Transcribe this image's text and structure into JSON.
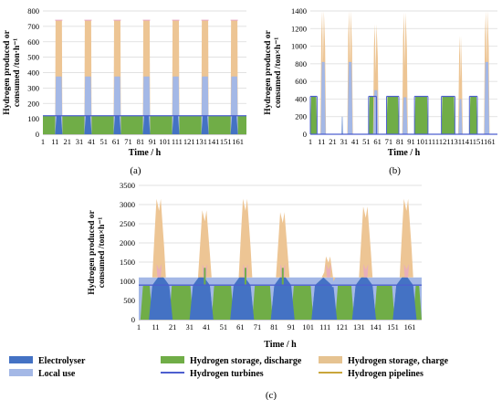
{
  "chart_data": [
    {
      "type": "area",
      "panel_label": "(a)",
      "xlabel": "Time / h",
      "ylabel_line1": "Hydrogen produced or",
      "ylabel_line2": "consumed /ton·h⁻¹",
      "ylim": [
        0,
        800
      ],
      "xlim": [
        1,
        168
      ],
      "yticks": [
        0,
        100,
        200,
        300,
        400,
        500,
        600,
        700,
        800
      ],
      "xticks": [
        1,
        11,
        21,
        31,
        41,
        51,
        61,
        71,
        81,
        91,
        101,
        111,
        121,
        131,
        141,
        151,
        161
      ],
      "grid": "horizontal",
      "series": [
        {
          "name": "Hydrogen storage, discharge",
          "segments": [
            [
              [
                1,
                120
              ],
              [
                168,
                120
              ]
            ]
          ]
        },
        {
          "name": "Electrolyser",
          "segments": [
            [
              [
                11,
                120
              ],
              [
                17,
                120
              ]
            ],
            [
              [
                35,
                120
              ],
              [
                41,
                120
              ]
            ],
            [
              [
                59,
                120
              ],
              [
                65,
                120
              ]
            ],
            [
              [
                83,
                120
              ],
              [
                89,
                120
              ]
            ],
            [
              [
                107,
                120
              ],
              [
                113,
                120
              ]
            ],
            [
              [
                131,
                120
              ],
              [
                137,
                120
              ]
            ],
            [
              [
                155,
                120
              ],
              [
                161,
                120
              ]
            ]
          ]
        },
        {
          "name": "Local use",
          "segments": [
            [
              [
                11,
                375
              ],
              [
                17,
                375
              ]
            ],
            [
              [
                35,
                375
              ],
              [
                41,
                375
              ]
            ],
            [
              [
                59,
                375
              ],
              [
                65,
                375
              ]
            ],
            [
              [
                83,
                375
              ],
              [
                89,
                375
              ]
            ],
            [
              [
                107,
                375
              ],
              [
                113,
                375
              ]
            ],
            [
              [
                131,
                375
              ],
              [
                137,
                375
              ]
            ],
            [
              [
                155,
                375
              ],
              [
                161,
                375
              ]
            ]
          ]
        },
        {
          "name": "Hydrogen storage, charge",
          "segments": [
            [
              [
                11,
                740
              ],
              [
                17,
                740
              ]
            ],
            [
              [
                35,
                740
              ],
              [
                41,
                740
              ]
            ],
            [
              [
                59,
                740
              ],
              [
                65,
                740
              ]
            ],
            [
              [
                83,
                740
              ],
              [
                89,
                740
              ]
            ],
            [
              [
                107,
                740
              ],
              [
                113,
                740
              ]
            ],
            [
              [
                131,
                740
              ],
              [
                137,
                740
              ]
            ],
            [
              [
                155,
                740
              ],
              [
                161,
                740
              ]
            ]
          ]
        }
      ],
      "turbine_line": [
        [
          1,
          120
        ],
        [
          168,
          120
        ]
      ]
    },
    {
      "type": "area",
      "panel_label": "(b)",
      "xlabel": "Time / h",
      "ylabel_line1": "Hydrogen produced or",
      "ylabel_line2": "consumed /ton×h⁻¹",
      "ylim": [
        0,
        1400
      ],
      "xlim": [
        1,
        168
      ],
      "yticks": [
        0,
        200,
        400,
        600,
        800,
        1000,
        1200,
        1400
      ],
      "xticks": [
        1,
        11,
        21,
        31,
        41,
        51,
        61,
        71,
        81,
        91,
        101,
        111,
        121,
        131,
        141,
        151,
        161
      ],
      "grid": "horizontal",
      "series": [
        {
          "name": "Hydrogen storage, discharge",
          "segments": [
            [
              [
                1,
                430
              ],
              [
                7,
                430
              ]
            ],
            [
              [
                53,
                430
              ],
              [
                60,
                430
              ]
            ],
            [
              [
                69,
                430
              ],
              [
                80,
                430
              ]
            ],
            [
              [
                94,
                430
              ],
              [
                106,
                430
              ]
            ],
            [
              [
                118,
                430
              ],
              [
                130,
                430
              ]
            ],
            [
              [
                143,
                430
              ],
              [
                150,
                430
              ]
            ]
          ]
        },
        {
          "name": "Electrolyser",
          "segments": [
            [
              [
                29,
                200
              ],
              [
                30,
                200
              ]
            ]
          ]
        },
        {
          "name": "Local use",
          "segments": [
            [
              [
                10,
                820
              ],
              [
                15,
                820
              ]
            ],
            [
              [
                34,
                820
              ],
              [
                39,
                820
              ]
            ],
            [
              [
                57,
                500
              ],
              [
                62,
                500
              ]
            ],
            [
              [
                83,
                420
              ],
              [
                88,
                420
              ]
            ],
            [
              [
                133,
                400
              ],
              [
                137,
                400
              ]
            ],
            [
              [
                156,
                820
              ],
              [
                161,
                820
              ]
            ]
          ]
        },
        {
          "name": "Hydrogen storage, charge",
          "segments": [
            [
              [
                10,
                1400
              ],
              [
                15,
                1400
              ]
            ],
            [
              [
                34,
                1400
              ],
              [
                39,
                1400
              ]
            ],
            [
              [
                57,
                1250
              ],
              [
                62,
                1250
              ]
            ],
            [
              [
                83,
                1380
              ],
              [
                88,
                1380
              ]
            ],
            [
              [
                133,
                1120
              ],
              [
                137,
                1120
              ]
            ],
            [
              [
                156,
                1400
              ],
              [
                161,
                1400
              ]
            ]
          ]
        }
      ],
      "turbine_line": [
        [
          1,
          430
        ],
        [
          168,
          430
        ]
      ]
    },
    {
      "type": "area",
      "panel_label": "(c)",
      "xlabel": "Time / h",
      "ylabel_line1": "Hydrogen produced or",
      "ylabel_line2": "consumed /ton×h⁻¹",
      "ylim": [
        0,
        3500
      ],
      "xlim": [
        1,
        168
      ],
      "yticks": [
        0,
        500,
        1000,
        1500,
        2000,
        2500,
        3000,
        3500
      ],
      "xticks": [
        1,
        11,
        21,
        31,
        41,
        51,
        61,
        71,
        81,
        91,
        101,
        111,
        121,
        131,
        141,
        151,
        161
      ],
      "grid": "horizontal",
      "series": [
        {
          "name": "Local use",
          "points": [
            [
              1,
              1100
            ],
            [
              168,
              1100
            ]
          ]
        },
        {
          "name": "Hydrogen storage, discharge",
          "points": [
            [
              1,
              900
            ],
            [
              168,
              900
            ]
          ]
        },
        {
          "name": "Electrolyser",
          "segments": [
            [
              [
                10,
                900
              ],
              [
                14,
                1200
              ],
              [
                18,
                900
              ]
            ],
            [
              [
                34,
                900
              ],
              [
                38,
                1200
              ],
              [
                42,
                900
              ]
            ],
            [
              [
                58,
                900
              ],
              [
                62,
                1200
              ],
              [
                66,
                900
              ]
            ],
            [
              [
                82,
                900
              ],
              [
                86,
                1200
              ],
              [
                90,
                900
              ]
            ],
            [
              [
                106,
                900
              ],
              [
                110,
                1100
              ],
              [
                114,
                900
              ]
            ],
            [
              [
                130,
                900
              ],
              [
                134,
                1200
              ],
              [
                138,
                900
              ]
            ],
            [
              [
                154,
                900
              ],
              [
                158,
                1200
              ],
              [
                162,
                900
              ]
            ]
          ]
        },
        {
          "name": "Hydrogen storage, charge",
          "peaks": [
            [
              13,
              3150
            ],
            [
              40,
              2850
            ],
            [
              64,
              3150
            ],
            [
              86,
              2800
            ],
            [
              113,
              1650
            ],
            [
              135,
              2950
            ],
            [
              159,
              3150
            ]
          ]
        }
      ],
      "turbine_line": [
        [
          1,
          900
        ],
        [
          168,
          900
        ]
      ]
    }
  ],
  "legend": {
    "items": [
      {
        "label": "Electrolyser",
        "kind": "fill",
        "color": "#4472c4"
      },
      {
        "label": "Hydrogen storage, discharge",
        "kind": "fill",
        "color": "#70ad47"
      },
      {
        "label": "Hydrogen storage, charge",
        "kind": "fill",
        "color": "#e6c391"
      },
      {
        "label": "Local use",
        "kind": "fill",
        "color": "#a4b8e6"
      },
      {
        "label": "Hydrogen turbines",
        "kind": "line",
        "color": "#4d5fcf"
      },
      {
        "label": "Hydrogen pipelines",
        "kind": "line",
        "color": "#c9a53a"
      }
    ]
  },
  "colors": {
    "electrolyser": "#4472c4",
    "discharge": "#70ad47",
    "charge": "#edc594",
    "local": "#a4b8e6",
    "turbine": "#4d5fcf",
    "pipeline": "#c9a53a",
    "grid": "#d9d9d9",
    "axis": "#808080",
    "pink": "#e7a7c8"
  }
}
